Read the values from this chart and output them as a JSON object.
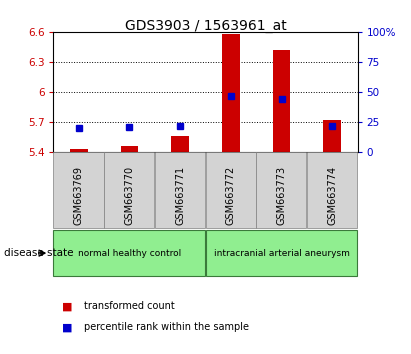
{
  "title": "GDS3903 / 1563961_at",
  "samples": [
    "GSM663769",
    "GSM663770",
    "GSM663771",
    "GSM663772",
    "GSM663773",
    "GSM663774"
  ],
  "transformed_count": [
    5.43,
    5.46,
    5.56,
    6.58,
    6.42,
    5.72
  ],
  "percentile_rank": [
    20,
    21,
    22,
    47,
    44,
    22
  ],
  "baseline": 5.4,
  "ylim_left": [
    5.4,
    6.6
  ],
  "ylim_right": [
    0,
    100
  ],
  "yticks_left": [
    5.4,
    5.7,
    6.0,
    6.3,
    6.6
  ],
  "yticks_right": [
    0,
    25,
    50,
    75,
    100
  ],
  "ytick_labels_left": [
    "5.4",
    "5.7",
    "6",
    "6.3",
    "6.6"
  ],
  "ytick_labels_right": [
    "0",
    "25",
    "50",
    "75",
    "100%"
  ],
  "bar_color": "#cc0000",
  "dot_color": "#0000cc",
  "groups": [
    {
      "label": "normal healthy control",
      "indices": [
        0,
        1,
        2
      ],
      "color": "#90ee90"
    },
    {
      "label": "intracranial arterial aneurysm",
      "indices": [
        3,
        4,
        5
      ],
      "color": "#90ee90"
    }
  ],
  "disease_state_label": "disease state",
  "legend_items": [
    {
      "color": "#cc0000",
      "label": "transformed count"
    },
    {
      "color": "#0000cc",
      "label": "percentile rank within the sample"
    }
  ],
  "title_fontsize": 10,
  "tick_fontsize": 7.5,
  "bar_width": 0.35,
  "sample_label_fontsize": 7,
  "group_label_fontsize": 6.5,
  "legend_fontsize": 7
}
